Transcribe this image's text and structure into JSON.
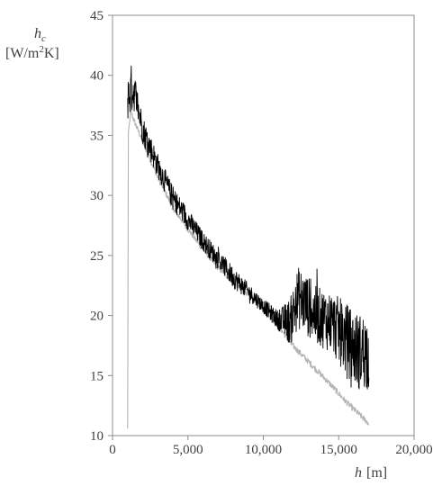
{
  "chart_data": {
    "type": "line",
    "xlabel_symbol": "h",
    "xlabel_unit": "[m]",
    "ylabel_symbol": "h",
    "ylabel_subscript": "c",
    "ylabel_unit_pre": "[W/m",
    "ylabel_unit_sup": "2",
    "ylabel_unit_post": "K]",
    "xlim": [
      0,
      20000
    ],
    "ylim": [
      10,
      45
    ],
    "xticks": [
      0,
      5000,
      10000,
      15000,
      20000
    ],
    "xtick_labels": [
      "0",
      "5,000",
      "10,000",
      "15,000",
      "20,000"
    ],
    "yticks": [
      10,
      15,
      20,
      25,
      30,
      35,
      40,
      45
    ],
    "ytick_labels": [
      "10",
      "15",
      "20",
      "25",
      "30",
      "35",
      "40",
      "45"
    ],
    "grid": false,
    "legend": "none",
    "series": [
      {
        "color": "#b4b4b4",
        "x": [
          1000,
          1050,
          1200,
          1500,
          2000,
          3000,
          4000,
          5000,
          6000,
          7000,
          8000,
          9000,
          10000,
          11000,
          11800,
          12500,
          13500,
          14500,
          15500,
          16500,
          17000
        ],
        "y": [
          10.5,
          35.0,
          37.0,
          36.0,
          34.5,
          31.5,
          29.0,
          27.2,
          25.5,
          24.0,
          22.8,
          21.8,
          20.5,
          19.2,
          17.7,
          16.8,
          15.5,
          14.2,
          12.8,
          11.6,
          11.0
        ]
      },
      {
        "color": "#000000",
        "x": [
          1000,
          1300,
          1500,
          2000,
          3000,
          4000,
          5000,
          6000,
          7000,
          8000,
          9000,
          10000,
          11000,
          11800,
          12300,
          12800,
          13500,
          14500,
          15500,
          16300,
          17000
        ],
        "y": [
          38.0,
          39.0,
          38.5,
          35.5,
          32.5,
          29.8,
          28.0,
          26.2,
          24.7,
          23.2,
          22.0,
          20.8,
          19.6,
          19.5,
          21.5,
          21.0,
          20.0,
          19.5,
          18.0,
          17.0,
          17.0
        ],
        "noise": [
          1.8,
          2.2,
          1.5,
          1.2,
          1.0,
          1.0,
          0.9,
          0.8,
          0.8,
          0.9,
          0.7,
          0.6,
          0.8,
          2.0,
          2.6,
          2.6,
          2.4,
          2.6,
          3.0,
          3.2,
          3.2
        ]
      }
    ]
  }
}
